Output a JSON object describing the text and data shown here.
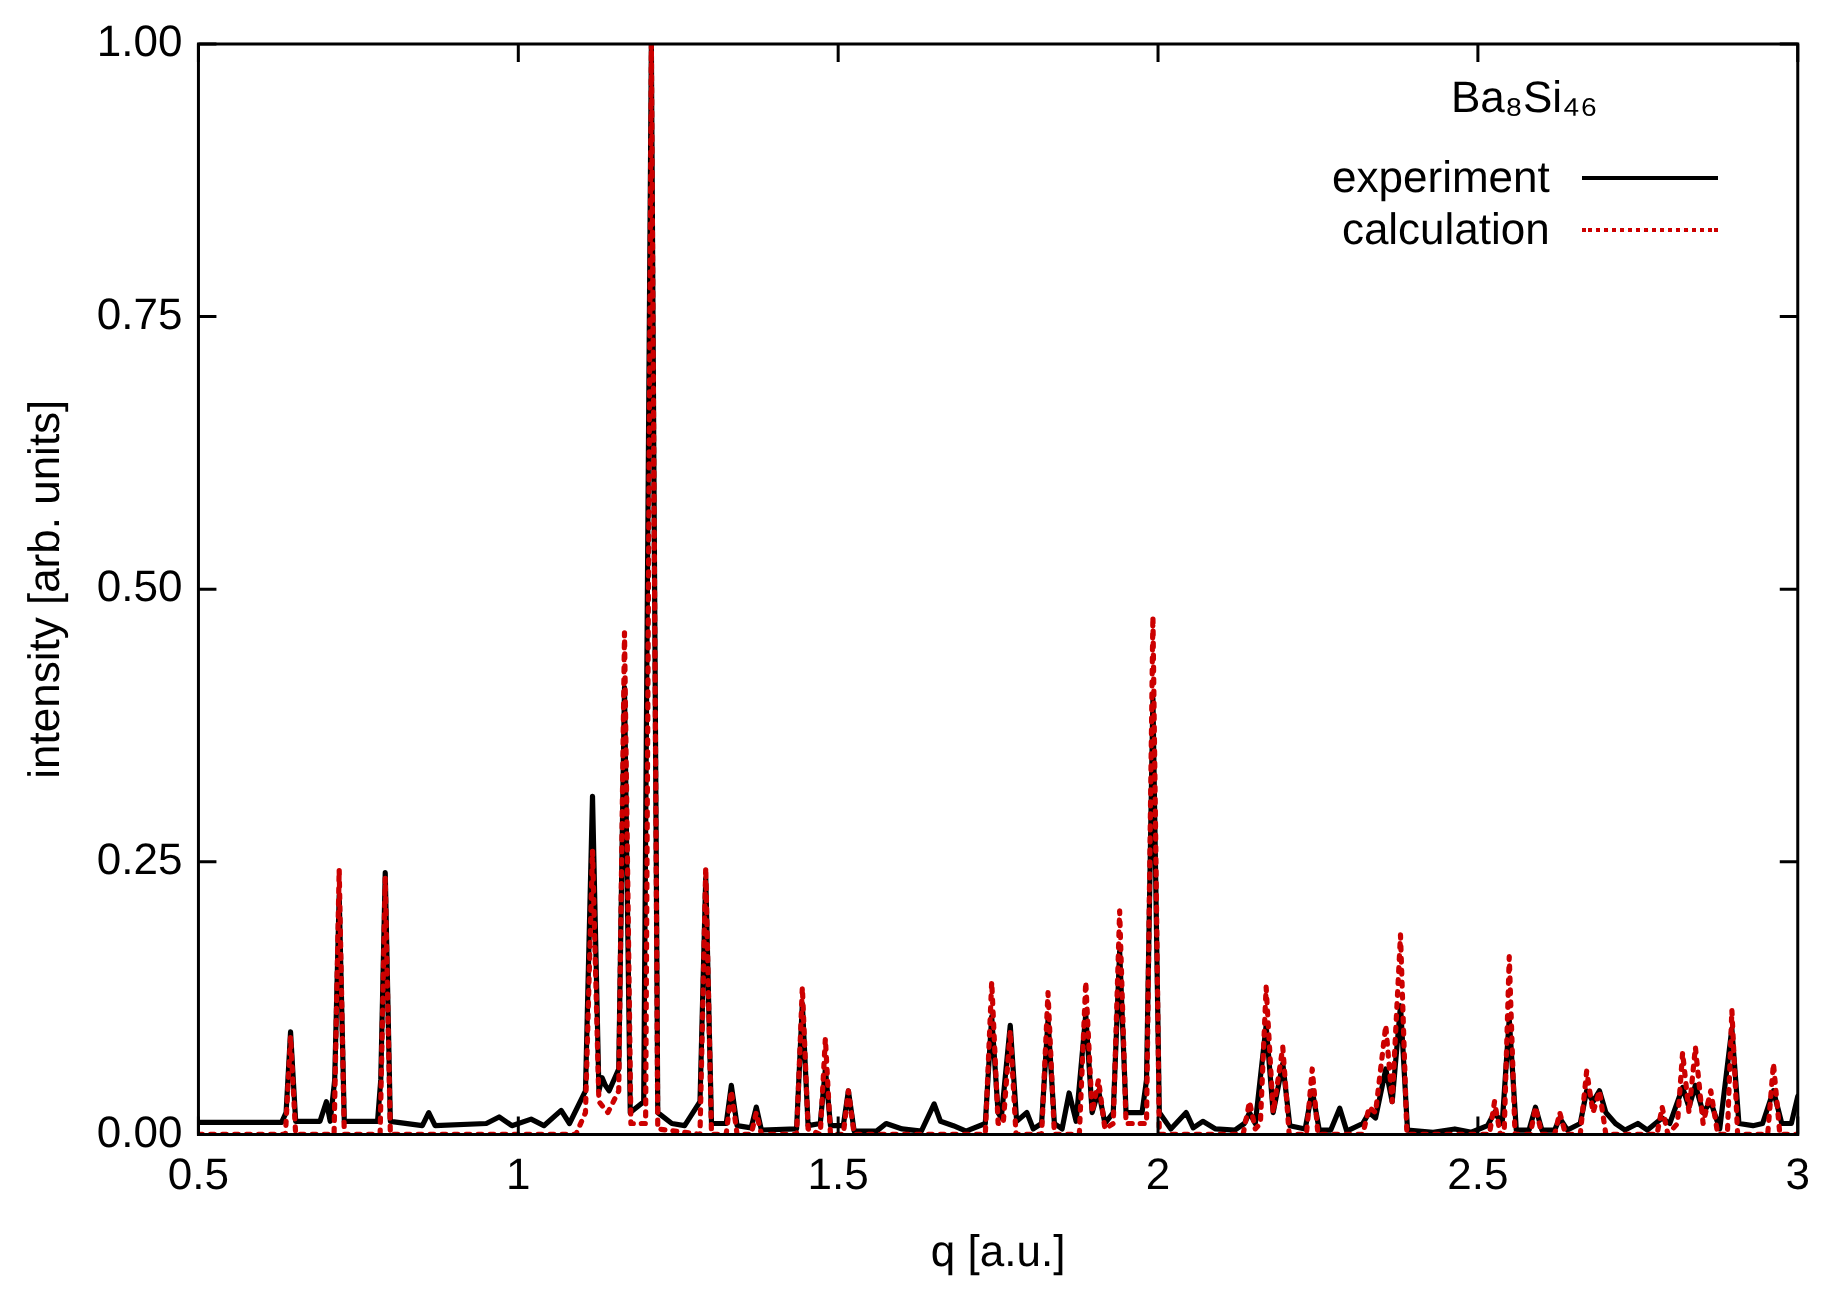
{
  "chart_data": {
    "type": "line",
    "xlabel": "q [a.u.]",
    "ylabel": "intensity [arb. units]",
    "legend_title": "Ba₈Si₄₆",
    "legend": "top right",
    "grid": false,
    "marker": "none",
    "xlim": [
      0.5,
      3
    ],
    "xticks": [
      0.5,
      1,
      1.5,
      2,
      2.5,
      3
    ],
    "ylim": [
      0,
      1
    ],
    "yticks": [
      {
        "value": 0,
        "label": "0.00"
      },
      {
        "value": 0.25,
        "label": "0.25"
      },
      {
        "value": 0.5,
        "label": "0.50"
      },
      {
        "value": 0.75,
        "label": "0.75"
      },
      {
        "value": 1,
        "label": "1.00"
      }
    ],
    "series": [
      {
        "name": "experiment",
        "color": "#000000",
        "line_style": "solid",
        "x": [
          0.5,
          0.63,
          0.637,
          0.644,
          0.652,
          0.69,
          0.7,
          0.706,
          0.713,
          0.72,
          0.728,
          0.78,
          0.785,
          0.792,
          0.8,
          0.85,
          0.86,
          0.87,
          0.95,
          0.97,
          0.99,
          1.02,
          1.04,
          1.067,
          1.08,
          1.105,
          1.116,
          1.126,
          1.131,
          1.136,
          1.142,
          1.157,
          1.166,
          1.175,
          1.196,
          1.208,
          1.218,
          1.24,
          1.26,
          1.284,
          1.293,
          1.302,
          1.325,
          1.333,
          1.342,
          1.364,
          1.372,
          1.38,
          1.435,
          1.444,
          1.453,
          1.472,
          1.48,
          1.488,
          1.508,
          1.516,
          1.525,
          1.56,
          1.575,
          1.6,
          1.63,
          1.65,
          1.66,
          1.68,
          1.7,
          1.73,
          1.74,
          1.75,
          1.755,
          1.769,
          1.779,
          1.795,
          1.805,
          1.818,
          1.828,
          1.838,
          1.85,
          1.861,
          1.872,
          1.887,
          1.897,
          1.907,
          1.917,
          1.93,
          1.94,
          1.95,
          1.975,
          1.982,
          1.992,
          2.002,
          2.02,
          2.044,
          2.055,
          2.07,
          2.09,
          2.12,
          2.135,
          2.143,
          2.152,
          2.169,
          2.18,
          2.195,
          2.206,
          2.23,
          2.241,
          2.252,
          2.27,
          2.284,
          2.295,
          2.32,
          2.33,
          2.34,
          2.356,
          2.366,
          2.379,
          2.39,
          2.43,
          2.464,
          2.49,
          2.515,
          2.526,
          2.538,
          2.549,
          2.56,
          2.58,
          2.59,
          2.6,
          2.62,
          2.628,
          2.64,
          2.66,
          2.67,
          2.68,
          2.69,
          2.7,
          2.715,
          2.73,
          2.75,
          2.765,
          2.788,
          2.8,
          2.82,
          2.83,
          2.84,
          2.852,
          2.864,
          2.878,
          2.897,
          2.908,
          2.93,
          2.945,
          2.962,
          2.975,
          2.99,
          3.0
        ],
        "values": [
          0.011,
          0.011,
          0.02,
          0.094,
          0.012,
          0.012,
          0.03,
          0.012,
          0.05,
          0.219,
          0.012,
          0.012,
          0.05,
          0.24,
          0.012,
          0.008,
          0.02,
          0.008,
          0.01,
          0.016,
          0.008,
          0.014,
          0.008,
          0.022,
          0.01,
          0.04,
          0.31,
          0.04,
          0.052,
          0.045,
          0.04,
          0.06,
          0.41,
          0.02,
          0.03,
          1.0,
          0.02,
          0.01,
          0.008,
          0.03,
          0.235,
          0.01,
          0.01,
          0.045,
          0.008,
          0.006,
          0.025,
          0.004,
          0.005,
          0.12,
          0.008,
          0.01,
          0.06,
          0.008,
          0.008,
          0.04,
          0.003,
          0.003,
          0.01,
          0.005,
          0.003,
          0.028,
          0.012,
          0.008,
          0.003,
          0.01,
          0.108,
          0.02,
          0.015,
          0.1,
          0.012,
          0.02,
          0.005,
          0.01,
          0.105,
          0.01,
          0.005,
          0.038,
          0.012,
          0.11,
          0.02,
          0.04,
          0.01,
          0.02,
          0.168,
          0.02,
          0.02,
          0.05,
          0.4,
          0.02,
          0.005,
          0.02,
          0.006,
          0.012,
          0.005,
          0.004,
          0.01,
          0.02,
          0.01,
          0.1,
          0.02,
          0.065,
          0.008,
          0.005,
          0.04,
          0.004,
          0.004,
          0.024,
          0.003,
          0.01,
          0.02,
          0.015,
          0.06,
          0.03,
          0.118,
          0.004,
          0.002,
          0.005,
          0.002,
          0.008,
          0.02,
          0.01,
          0.106,
          0.004,
          0.004,
          0.025,
          0.004,
          0.004,
          0.015,
          0.004,
          0.01,
          0.04,
          0.03,
          0.04,
          0.02,
          0.01,
          0.004,
          0.01,
          0.004,
          0.015,
          0.01,
          0.043,
          0.025,
          0.045,
          0.02,
          0.03,
          0.005,
          0.097,
          0.01,
          0.008,
          0.01,
          0.04,
          0.01,
          0.01,
          0.035
        ]
      },
      {
        "name": "calculation",
        "color": "#cc0000",
        "line_style": "dotted",
        "x": [
          0.5,
          0.636,
          0.644,
          0.652,
          0.712,
          0.72,
          0.728,
          0.784,
          0.792,
          0.8,
          1.09,
          1.105,
          1.116,
          1.126,
          1.14,
          1.157,
          1.166,
          1.176,
          1.199,
          1.208,
          1.218,
          1.284,
          1.293,
          1.302,
          1.325,
          1.333,
          1.342,
          1.364,
          1.372,
          1.38,
          1.435,
          1.444,
          1.453,
          1.472,
          1.48,
          1.488,
          1.508,
          1.516,
          1.525,
          1.73,
          1.74,
          1.75,
          1.758,
          1.769,
          1.778,
          1.818,
          1.828,
          1.838,
          1.877,
          1.887,
          1.897,
          1.907,
          1.917,
          1.93,
          1.94,
          1.95,
          1.982,
          1.992,
          2.002,
          2.133,
          2.143,
          2.152,
          2.16,
          2.169,
          2.18,
          2.195,
          2.205,
          2.232,
          2.241,
          2.25,
          2.32,
          2.33,
          2.34,
          2.356,
          2.366,
          2.379,
          2.389,
          2.518,
          2.526,
          2.535,
          2.541,
          2.549,
          2.558,
          2.582,
          2.59,
          2.6,
          2.62,
          2.628,
          2.637,
          2.66,
          2.67,
          2.68,
          2.69,
          2.7,
          2.78,
          2.788,
          2.797,
          2.812,
          2.82,
          2.83,
          2.84,
          2.852,
          2.864,
          2.875,
          2.89,
          2.897,
          2.906,
          2.953,
          2.962,
          2.972,
          3.0
        ],
        "values": [
          0,
          0,
          0.09,
          0,
          0,
          0.243,
          0,
          0,
          0.235,
          0,
          0,
          0.02,
          0.26,
          0.03,
          0.02,
          0.04,
          0.46,
          0.01,
          0.01,
          1.0,
          0.005,
          0,
          0.245,
          0,
          0,
          0.04,
          0,
          0,
          0.02,
          0,
          0,
          0.135,
          0.005,
          0,
          0.088,
          0,
          0,
          0.04,
          0,
          0,
          0.14,
          0.01,
          0.01,
          0.095,
          0,
          0,
          0.13,
          0,
          0,
          0.14,
          0.02,
          0.05,
          0.005,
          0.01,
          0.205,
          0.01,
          0.01,
          0.475,
          0,
          0,
          0.03,
          0.005,
          0.01,
          0.135,
          0.02,
          0.08,
          0,
          0,
          0.06,
          0,
          0,
          0.025,
          0.02,
          0.1,
          0.03,
          0.183,
          0,
          0,
          0.03,
          0,
          0,
          0.163,
          0,
          0,
          0.025,
          0,
          0,
          0.02,
          0,
          0,
          0.058,
          0.02,
          0.04,
          0,
          0,
          0.025,
          0,
          0.01,
          0.075,
          0.02,
          0.08,
          0.01,
          0.04,
          0,
          0,
          0.114,
          0,
          0,
          0.065,
          0,
          0
        ]
      }
    ]
  }
}
